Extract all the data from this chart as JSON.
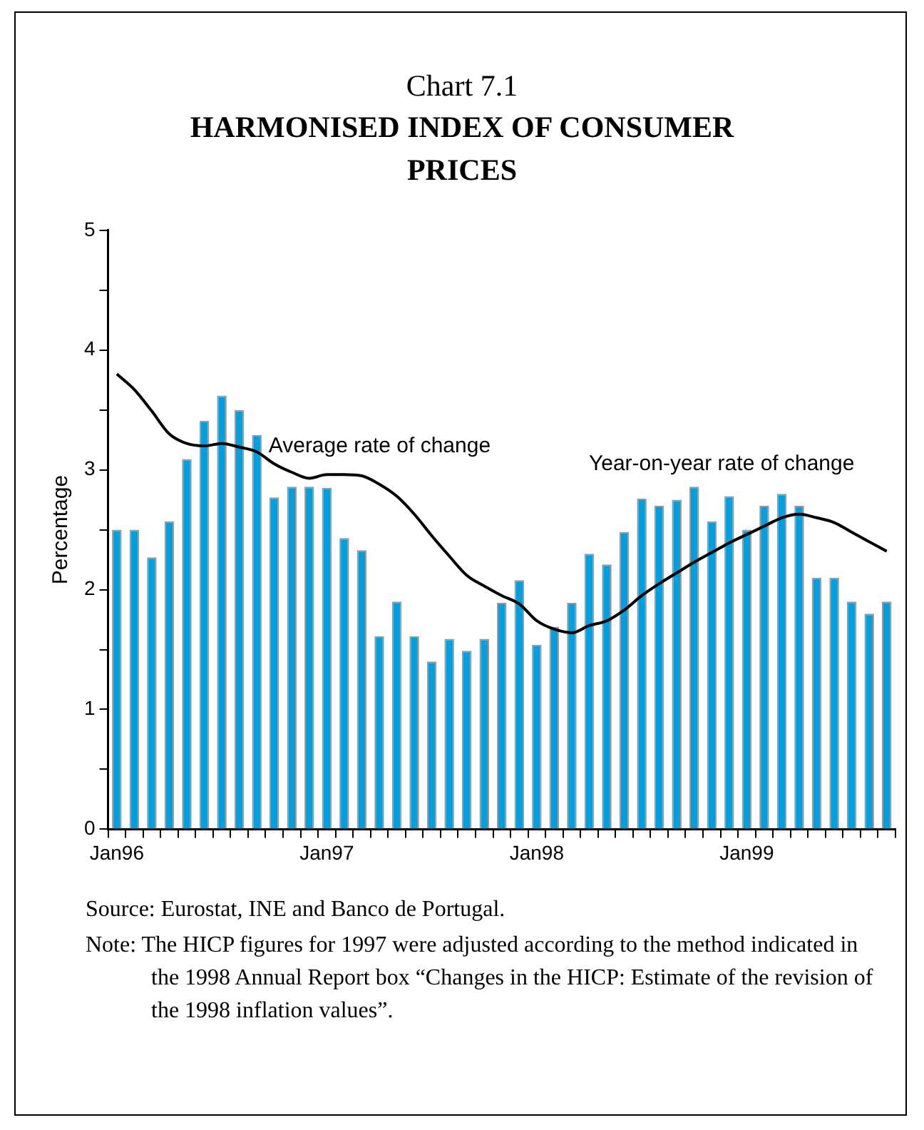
{
  "chart_data": {
    "type": "bar",
    "title": "Chart 7.1",
    "subtitle": "HARMONISED INDEX OF CONSUMER PRICES",
    "ylabel": "Percentage",
    "categories": [
      "Jan96",
      null,
      null,
      null,
      null,
      null,
      null,
      null,
      null,
      null,
      null,
      null,
      "Jan97",
      null,
      null,
      null,
      null,
      null,
      null,
      null,
      null,
      null,
      null,
      null,
      "Jan98",
      null,
      null,
      null,
      null,
      null,
      null,
      null,
      null,
      null,
      null,
      null,
      "Jan99",
      null,
      null,
      null,
      null,
      null,
      null,
      null,
      null
    ],
    "series": [
      {
        "name": "Year-on-year rate of change",
        "color": "#00a0e0",
        "values": [
          2.5,
          2.5,
          2.27,
          2.57,
          3.09,
          3.41,
          3.62,
          3.5,
          3.29,
          2.77,
          2.86,
          2.86,
          2.85,
          2.43,
          2.33,
          1.61,
          1.9,
          1.61,
          1.4,
          1.59,
          1.49,
          1.59,
          1.89,
          2.08,
          1.54,
          1.69,
          1.89,
          2.3,
          2.21,
          2.48,
          2.76,
          2.7,
          2.75,
          2.86,
          2.57,
          2.78,
          2.5,
          2.7,
          2.8,
          2.7,
          2.1,
          2.1,
          1.9,
          1.8,
          1.9
        ]
      },
      {
        "name": "Average rate of change",
        "type": "line",
        "color": "#000000",
        "values": [
          3.8,
          3.67,
          3.49,
          3.3,
          3.22,
          3.2,
          3.22,
          3.19,
          3.15,
          3.05,
          2.98,
          2.93,
          2.96,
          2.96,
          2.95,
          2.88,
          2.78,
          2.63,
          2.45,
          2.28,
          2.12,
          2.03,
          1.95,
          1.88,
          1.74,
          1.67,
          1.64,
          1.7,
          1.74,
          1.83,
          1.95,
          2.05,
          2.14,
          2.23,
          2.31,
          2.39,
          2.46,
          2.53,
          2.6,
          2.63,
          2.6,
          2.56,
          2.48,
          2.4,
          2.32
        ]
      }
    ],
    "ylim": [
      0,
      5
    ],
    "yticks": [
      0,
      {
        "value": 0.5,
        "label": null
      },
      1,
      {
        "value": 1.5,
        "label": null
      },
      2,
      {
        "value": 2.5,
        "label": null
      },
      3,
      {
        "value": 3.5,
        "label": null
      },
      4,
      {
        "value": 4.5,
        "label": null
      },
      5
    ],
    "grid": false,
    "legend": false,
    "marker": "none",
    "line_style": "solid",
    "annotations": [
      "Source: Eurostat, INE and Banco de Portugal.",
      "Note: The HICP figures for 1997 were adjusted according to the method indicated in the 1998 Annual Report box “Changes in the HICP: Estimate of the revision of the 1998 inflation values”."
    ]
  }
}
